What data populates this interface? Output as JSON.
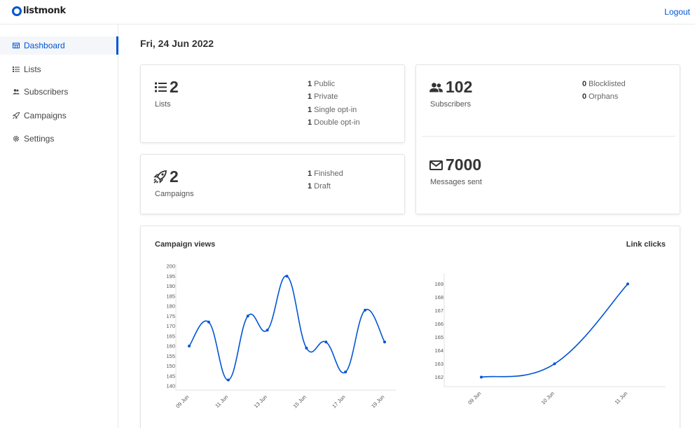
{
  "header": {
    "brand": "listmonk",
    "logout_label": "Logout"
  },
  "sidebar": {
    "items": [
      {
        "label": "Dashboard",
        "icon": "dashboard-icon",
        "active": true
      },
      {
        "label": "Lists",
        "icon": "list-icon",
        "active": false
      },
      {
        "label": "Subscribers",
        "icon": "users-icon",
        "active": false
      },
      {
        "label": "Campaigns",
        "icon": "rocket-icon",
        "active": false
      },
      {
        "label": "Settings",
        "icon": "gear-icon",
        "active": false
      }
    ]
  },
  "main": {
    "date": "Fri, 24 Jun 2022",
    "lists_card": {
      "count": "2",
      "label": "Lists",
      "stats": [
        {
          "value": "1",
          "label": "Public"
        },
        {
          "value": "1",
          "label": "Private"
        },
        {
          "value": "1",
          "label": "Single opt-in"
        },
        {
          "value": "1",
          "label": "Double opt-in"
        }
      ]
    },
    "subscribers_card": {
      "count": "102",
      "label": "Subscribers",
      "stats": [
        {
          "value": "0",
          "label": "Blocklisted"
        },
        {
          "value": "0",
          "label": "Orphans"
        }
      ],
      "messages_count": "7000",
      "messages_label": "Messages sent"
    },
    "campaigns_card": {
      "count": "2",
      "label": "Campaigns",
      "stats": [
        {
          "value": "1",
          "label": "Finished"
        },
        {
          "value": "1",
          "label": "Draft"
        }
      ]
    }
  },
  "chart_data": [
    {
      "type": "line",
      "title": "Campaign views",
      "x": [
        "09 Jun",
        "10 Jun",
        "11 Jun",
        "12 Jun",
        "13 Jun",
        "14 Jun",
        "15 Jun",
        "16 Jun",
        "17 Jun",
        "18 Jun",
        "19 Jun"
      ],
      "x_tick_labels": [
        "09 Jun",
        "11 Jun",
        "13 Jun",
        "15 Jun",
        "17 Jun",
        "19 Jun"
      ],
      "values": [
        160,
        172,
        143,
        175,
        168,
        195,
        159,
        162,
        147,
        178,
        162
      ],
      "ylim": [
        140,
        200
      ],
      "y_ticks": [
        140,
        145,
        150,
        155,
        160,
        165,
        170,
        175,
        180,
        185,
        190,
        195,
        200
      ],
      "color": "#0055d4"
    },
    {
      "type": "line",
      "title": "Link clicks",
      "x": [
        "09 Jun",
        "10 Jun",
        "11 Jun"
      ],
      "x_tick_labels": [
        "09 Jun",
        "10 Jun",
        "11 Jun"
      ],
      "values": [
        162,
        163,
        169
      ],
      "ylim": [
        161.6,
        169.6
      ],
      "y_ticks": [
        162,
        163,
        164,
        165,
        166,
        167,
        168,
        169
      ],
      "color": "#0055d4"
    }
  ]
}
